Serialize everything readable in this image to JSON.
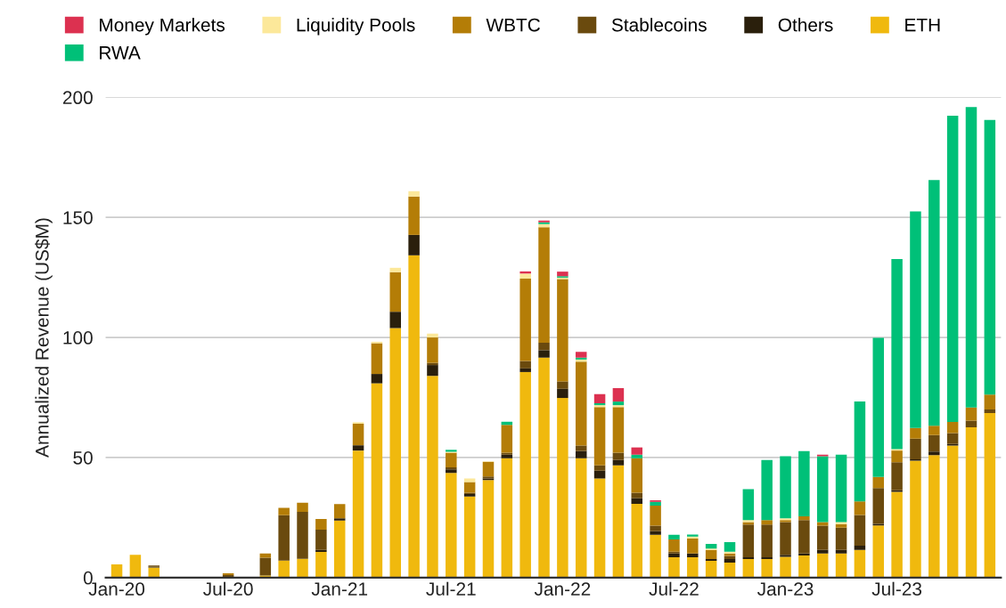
{
  "chart_data": {
    "type": "bar",
    "stacked": true,
    "ylabel": "Annualized Revenue (US$M)",
    "categories": [
      "Jan-20",
      null,
      null,
      null,
      null,
      null,
      "Jul-20",
      null,
      null,
      null,
      null,
      null,
      "Jan-21",
      null,
      null,
      null,
      null,
      null,
      "Jul-21",
      null,
      null,
      null,
      null,
      null,
      "Jan-22",
      null,
      null,
      null,
      null,
      null,
      "Jul-22",
      null,
      null,
      null,
      null,
      null,
      "Jan-23",
      null,
      null,
      null,
      null,
      null,
      "Jul-23",
      null,
      null,
      null,
      null,
      null
    ],
    "ylim": [
      0,
      200
    ],
    "yticks": [
      0,
      50,
      100,
      150,
      200
    ],
    "grid": "y",
    "legend": "top",
    "series": [
      {
        "name": "ETH",
        "color": "#f0b90e",
        "values": [
          5.5,
          9.5,
          4.2,
          0,
          0,
          0,
          0.3,
          0,
          0.9,
          7.1,
          7.8,
          10.7,
          23.8,
          52.9,
          80.9,
          103.9,
          134.2,
          84.0,
          43.6,
          33.8,
          40.6,
          49.7,
          85.6,
          91.6,
          74.8,
          49.7,
          41.3,
          46.7,
          30.7,
          17.8,
          8.5,
          8.5,
          7.0,
          6.2,
          7.7,
          7.7,
          8.7,
          9.2,
          10.0,
          10.0,
          11.5,
          21.7,
          35.7,
          48.7,
          51.0,
          55.0,
          62.6,
          68.5
        ]
      },
      {
        "name": "Others",
        "color": "#2a1f0c",
        "values": [
          0,
          0,
          0.3,
          0,
          0,
          0,
          0,
          0,
          0,
          0,
          0,
          0.8,
          0.9,
          2.2,
          3.9,
          6.8,
          8.5,
          4.5,
          1.5,
          1.0,
          0.7,
          1.5,
          1.5,
          3.1,
          3.8,
          3.0,
          3.2,
          2.3,
          2.3,
          1.5,
          1.5,
          1.5,
          0.7,
          1.5,
          0.8,
          0.8,
          0.8,
          0.8,
          1.5,
          1.5,
          1.8,
          0.7,
          0.7,
          0.5,
          1.5,
          0.6,
          0,
          0
        ]
      },
      {
        "name": "Stablecoins",
        "color": "#6a4a0e",
        "values": [
          0,
          0,
          0.5,
          0,
          0,
          0,
          0.8,
          0,
          7.4,
          18.9,
          19.6,
          8.5,
          0,
          0,
          0,
          0,
          0,
          0.9,
          0.8,
          0.5,
          0.8,
          0.8,
          3.1,
          3.1,
          3.1,
          2.3,
          2.2,
          3.0,
          2.3,
          2.3,
          0.8,
          0,
          0,
          1.3,
          13.6,
          13.6,
          13.6,
          13.9,
          10.1,
          9.3,
          12.8,
          14.9,
          11.6,
          8.7,
          6.8,
          4.6,
          2.8,
          1.5
        ]
      },
      {
        "name": "WBTC",
        "color": "#b47d07",
        "values": [
          0,
          0,
          null,
          0,
          0,
          0,
          0.7,
          0,
          1.7,
          3.0,
          3.8,
          4.4,
          5.9,
          9.0,
          12.8,
          16.5,
          16.0,
          10.6,
          6.1,
          4.5,
          6.1,
          11.6,
          34.3,
          48.1,
          42.6,
          34.9,
          24.3,
          19.0,
          14.4,
          8.4,
          5.1,
          6.3,
          3.8,
          1.0,
          1.0,
          1.8,
          0.8,
          1.6,
          1.5,
          1.5,
          5.6,
          4.6,
          4.9,
          4.4,
          3.9,
          4.6,
          5.4,
          6.2
        ]
      },
      {
        "name": "Liquidity Pools",
        "color": "#fce89a",
        "values": [
          0,
          0,
          0,
          0,
          0,
          0,
          0,
          0,
          0,
          0,
          0,
          0,
          0,
          0.6,
          0.6,
          1.8,
          2.2,
          1.6,
          0.4,
          1.5,
          0.2,
          0,
          2.1,
          1.3,
          0.6,
          0.9,
          0.8,
          0.8,
          0,
          0,
          0,
          0.8,
          0.6,
          0.8,
          0.8,
          0,
          0.8,
          0,
          0,
          0.8,
          0,
          0,
          0.6,
          0,
          0,
          0,
          0,
          0
        ]
      },
      {
        "name": "RWA",
        "color": "#00c078",
        "values": [
          0,
          0,
          0,
          0,
          0,
          0,
          0,
          0,
          0,
          0,
          0,
          0,
          0,
          0,
          0,
          0,
          0,
          0,
          0.8,
          0,
          0,
          1.3,
          0,
          0.7,
          0.6,
          0.8,
          0.8,
          1.5,
          1.5,
          1.5,
          1.9,
          0.8,
          1.9,
          4.0,
          12.9,
          25.1,
          25.8,
          27.2,
          27.4,
          28.1,
          41.6,
          57.9,
          79.1,
          90.2,
          102.3,
          127.5,
          125.1,
          114.4
        ]
      },
      {
        "name": "Money Markets",
        "color": "#dc3150",
        "values": [
          0,
          0,
          0,
          0,
          0,
          0,
          0,
          0,
          0,
          0,
          0,
          0,
          0,
          0,
          0,
          0,
          0,
          0,
          0,
          0,
          0,
          0,
          0.9,
          0.8,
          1.9,
          2.4,
          3.8,
          5.6,
          3.0,
          0.7,
          0,
          0,
          0,
          0,
          0,
          0,
          0,
          0,
          0.7,
          0,
          0,
          0,
          0,
          0,
          0,
          0,
          0,
          0
        ]
      }
    ]
  }
}
